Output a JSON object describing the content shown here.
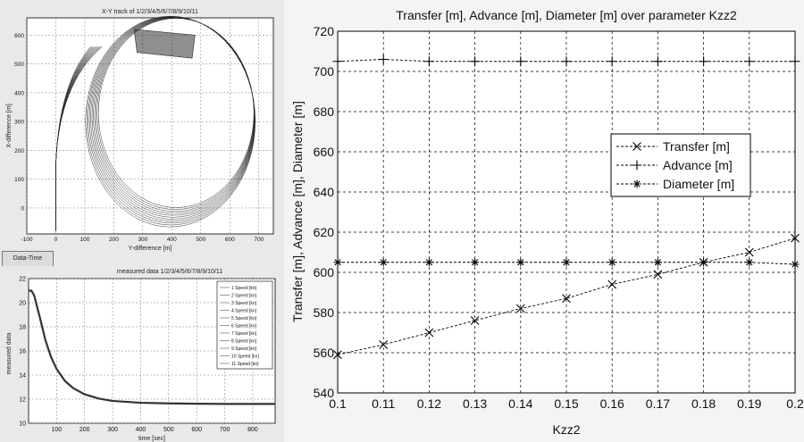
{
  "window": {
    "tab_label": "Data-Time"
  },
  "charts": {
    "xy": {
      "title": "X-Y track of 1/2/3/4/5/6/7/8/9/10/11",
      "xlabel": "Y-difference [m]",
      "ylabel": "X-difference [m]",
      "xticks": [
        "-100",
        "0",
        "100",
        "200",
        "300",
        "400",
        "500",
        "600",
        "700"
      ],
      "yticks": [
        "0",
        "100",
        "200",
        "300",
        "400",
        "500",
        "600"
      ]
    },
    "speed": {
      "title": "measured data 1/2/3/4/5/6/7/8/9/10/11",
      "xlabel": "time [sec]",
      "ylabel": "measured data",
      "xticks": [
        "100",
        "200",
        "300",
        "400",
        "500",
        "600",
        "700",
        "800"
      ],
      "yticks": [
        "10",
        "12",
        "14",
        "16",
        "18",
        "20",
        "22"
      ],
      "legend": [
        "1 Speed [kn]",
        "2 Speed [kn]",
        "3 Speed [kn]",
        "4 Speed [kn]",
        "5 Speed [kn]",
        "6 Speed [kn]",
        "7 Speed [kn]",
        "8 Speed [kn]",
        "9 Speed [kn]",
        "10 Speed [kn]",
        "11 Speed [kn]"
      ]
    },
    "main": {
      "title": "Transfer [m], Advance [m], Diameter [m] over parameter Kzz2",
      "xlabel": "Kzz2",
      "ylabel": "Transfer [m], Advance [m], Diameter [m]",
      "xticks": [
        "0.1",
        "0.11",
        "0.12",
        "0.13",
        "0.14",
        "0.15",
        "0.16",
        "0.17",
        "0.18",
        "0.19",
        "0.2"
      ],
      "yticks": [
        "540",
        "560",
        "580",
        "600",
        "620",
        "640",
        "660",
        "680",
        "700",
        "720"
      ],
      "legend": [
        "Transfer [m]",
        "Advance [m]",
        "Diameter [m]"
      ]
    }
  },
  "chart_data": [
    {
      "type": "line",
      "title": "Transfer [m], Advance [m], Diameter [m] over parameter Kzz2",
      "xlabel": "Kzz2",
      "ylabel": "Transfer [m], Advance [m], Diameter [m]",
      "x": [
        0.1,
        0.11,
        0.12,
        0.13,
        0.14,
        0.15,
        0.16,
        0.17,
        0.18,
        0.19,
        0.2
      ],
      "xlim": [
        0.1,
        0.2
      ],
      "ylim": [
        540,
        720
      ],
      "grid": true,
      "legend_position": "right",
      "series": [
        {
          "name": "Transfer [m]",
          "marker": "x",
          "values": [
            559,
            564,
            570,
            576,
            582,
            587,
            594,
            599,
            605,
            610,
            617
          ]
        },
        {
          "name": "Advance [m]",
          "marker": "+",
          "values": [
            705,
            706,
            705,
            705,
            705,
            705,
            705,
            705,
            705,
            705,
            705
          ]
        },
        {
          "name": "Diameter [m]",
          "marker": "*",
          "values": [
            605,
            605,
            605,
            605,
            605,
            605,
            605,
            605,
            605,
            605,
            604
          ]
        }
      ]
    },
    {
      "type": "line",
      "title": "measured data 1/2/3/4/5/6/7/8/9/10/11",
      "xlabel": "time [sec]",
      "ylabel": "measured data",
      "xlim": [
        0,
        880
      ],
      "ylim": [
        10,
        22
      ],
      "grid": true,
      "legend_position": "right",
      "x": [
        0,
        10,
        20,
        40,
        60,
        80,
        100,
        130,
        160,
        200,
        250,
        300,
        400,
        500,
        600,
        700,
        880
      ],
      "series": [
        {
          "name": "1 Speed [kn]",
          "values": [
            21,
            21,
            20.6,
            18.8,
            16.9,
            15.5,
            14.5,
            13.5,
            12.9,
            12.4,
            12.05,
            11.85,
            11.7,
            11.65,
            11.62,
            11.6,
            11.6
          ]
        }
      ]
    },
    {
      "type": "line",
      "title": "X-Y track of 1/2/3/4/5/6/7/8/9/10/11",
      "xlabel": "Y-difference [m]",
      "ylabel": "X-difference [m]",
      "xlim": [
        -100,
        750
      ],
      "ylim": [
        -90,
        660
      ],
      "grid": true,
      "series": []
    }
  ]
}
